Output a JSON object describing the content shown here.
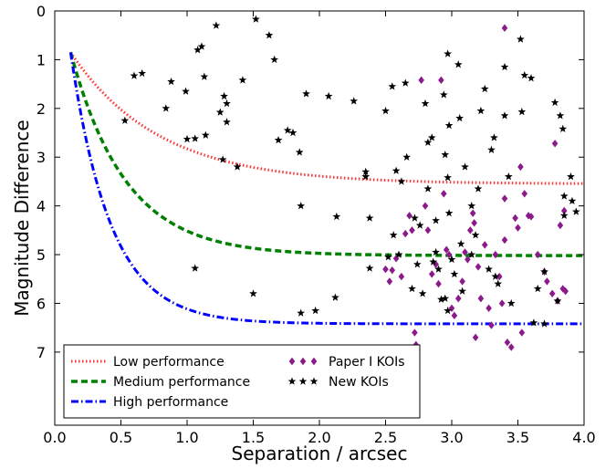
{
  "chart_data": {
    "type": "scatter",
    "xlabel": "Separation / arcsec",
    "ylabel": "Magnitude Difference",
    "xlim": [
      0.0,
      4.0
    ],
    "ylim": [
      8.5,
      0.0
    ],
    "y_inverted": true,
    "x_ticks": [
      "0.0",
      "0.5",
      "1.0",
      "1.5",
      "2.0",
      "2.5",
      "3.0",
      "3.5",
      "4.0"
    ],
    "y_ticks": [
      "0",
      "1",
      "2",
      "3",
      "4",
      "5",
      "6",
      "7"
    ],
    "grid": false,
    "legend_position": "bottom-left",
    "curves": [
      {
        "name": "Low performance",
        "color": "#ff3333",
        "style": "dotted",
        "x0": 0.12,
        "y0": 0.85,
        "y_inf": 3.55,
        "k": 1.5
      },
      {
        "name": "Medium performance",
        "color": "#008000",
        "style": "dashed",
        "x0": 0.12,
        "y0": 0.85,
        "y_inf": 5.02,
        "k": 2.4
      },
      {
        "name": "High performance",
        "color": "#0000ff",
        "style": "dashdot",
        "x0": 0.12,
        "y0": 0.85,
        "y_inf": 6.42,
        "k": 3.3
      }
    ],
    "series": [
      {
        "name": "Paper I KOIs",
        "marker": "diamond",
        "color": "#8b1a8b",
        "points": [
          [
            2.5,
            5.3
          ],
          [
            2.53,
            5.55
          ],
          [
            2.55,
            5.32
          ],
          [
            2.58,
            5.08
          ],
          [
            2.62,
            5.45
          ],
          [
            2.65,
            4.57
          ],
          [
            2.68,
            4.2
          ],
          [
            2.7,
            4.5
          ],
          [
            2.72,
            6.6
          ],
          [
            2.73,
            6.85
          ],
          [
            2.77,
            1.42
          ],
          [
            2.8,
            4.0
          ],
          [
            2.82,
            4.5
          ],
          [
            2.85,
            5.4
          ],
          [
            2.88,
            5.2
          ],
          [
            2.9,
            5.6
          ],
          [
            2.92,
            1.42
          ],
          [
            2.94,
            3.75
          ],
          [
            2.96,
            4.9
          ],
          [
            2.98,
            5.0
          ],
          [
            3.0,
            6.1
          ],
          [
            3.02,
            6.25
          ],
          [
            3.05,
            5.9
          ],
          [
            3.08,
            5.55
          ],
          [
            3.1,
            4.95
          ],
          [
            3.12,
            5.1
          ],
          [
            3.14,
            4.5
          ],
          [
            3.16,
            4.15
          ],
          [
            3.17,
            4.35
          ],
          [
            3.18,
            6.7
          ],
          [
            3.2,
            5.25
          ],
          [
            3.22,
            5.9
          ],
          [
            3.25,
            4.8
          ],
          [
            3.28,
            6.1
          ],
          [
            3.3,
            6.45
          ],
          [
            3.33,
            5.0
          ],
          [
            3.36,
            5.45
          ],
          [
            3.38,
            6.0
          ],
          [
            3.4,
            0.35
          ],
          [
            3.4,
            3.85
          ],
          [
            3.4,
            4.7
          ],
          [
            3.42,
            6.8
          ],
          [
            3.45,
            6.9
          ],
          [
            3.48,
            4.25
          ],
          [
            3.5,
            4.45
          ],
          [
            3.52,
            3.2
          ],
          [
            3.53,
            6.6
          ],
          [
            3.55,
            3.75
          ],
          [
            3.58,
            4.2
          ],
          [
            3.6,
            4.22
          ],
          [
            3.65,
            5.0
          ],
          [
            3.7,
            5.35
          ],
          [
            3.72,
            5.55
          ],
          [
            3.76,
            5.8
          ],
          [
            3.78,
            2.72
          ],
          [
            3.8,
            5.95
          ],
          [
            3.82,
            4.4
          ],
          [
            3.84,
            5.7
          ],
          [
            3.85,
            4.1
          ],
          [
            3.86,
            5.75
          ]
        ]
      },
      {
        "name": "New KOIs",
        "marker": "star",
        "color": "#000000",
        "points": [
          [
            0.53,
            2.25
          ],
          [
            0.6,
            1.33
          ],
          [
            0.66,
            1.28
          ],
          [
            0.84,
            2.0
          ],
          [
            0.88,
            1.45
          ],
          [
            0.99,
            1.65
          ],
          [
            1.0,
            2.63
          ],
          [
            1.06,
            2.62
          ],
          [
            1.06,
            5.28
          ],
          [
            1.08,
            0.8
          ],
          [
            1.11,
            0.73
          ],
          [
            1.13,
            1.35
          ],
          [
            1.14,
            2.55
          ],
          [
            1.22,
            0.3
          ],
          [
            1.25,
            2.08
          ],
          [
            1.27,
            3.05
          ],
          [
            1.28,
            1.75
          ],
          [
            1.3,
            1.9
          ],
          [
            1.3,
            2.28
          ],
          [
            1.38,
            3.2
          ],
          [
            1.42,
            1.42
          ],
          [
            1.5,
            5.8
          ],
          [
            1.52,
            0.17
          ],
          [
            1.62,
            0.5
          ],
          [
            1.66,
            1.0
          ],
          [
            1.69,
            2.65
          ],
          [
            1.76,
            2.45
          ],
          [
            1.8,
            2.5
          ],
          [
            1.85,
            2.9
          ],
          [
            1.86,
            4.0
          ],
          [
            1.86,
            6.2
          ],
          [
            1.9,
            1.7
          ],
          [
            1.97,
            6.15
          ],
          [
            2.07,
            1.75
          ],
          [
            2.12,
            5.88
          ],
          [
            2.13,
            4.22
          ],
          [
            2.26,
            1.85
          ],
          [
            2.35,
            3.3
          ],
          [
            2.35,
            3.4
          ],
          [
            2.38,
            4.25
          ],
          [
            2.38,
            5.28
          ],
          [
            2.5,
            2.05
          ],
          [
            2.52,
            5.05
          ],
          [
            2.55,
            1.55
          ],
          [
            2.56,
            4.6
          ],
          [
            2.58,
            3.28
          ],
          [
            2.6,
            5.0
          ],
          [
            2.62,
            3.5
          ],
          [
            2.65,
            1.48
          ],
          [
            2.66,
            3.0
          ],
          [
            2.7,
            5.7
          ],
          [
            2.72,
            4.25
          ],
          [
            2.74,
            5.2
          ],
          [
            2.76,
            4.4
          ],
          [
            2.78,
            5.8
          ],
          [
            2.8,
            1.9
          ],
          [
            2.82,
            2.7
          ],
          [
            2.82,
            3.65
          ],
          [
            2.85,
            2.6
          ],
          [
            2.86,
            5.15
          ],
          [
            2.88,
            4.3
          ],
          [
            2.88,
            4.95
          ],
          [
            2.9,
            5.3
          ],
          [
            2.92,
            5.92
          ],
          [
            2.94,
            1.72
          ],
          [
            2.95,
            2.95
          ],
          [
            2.95,
            5.9
          ],
          [
            2.97,
            0.88
          ],
          [
            2.97,
            3.42
          ],
          [
            2.97,
            6.15
          ],
          [
            2.98,
            2.35
          ],
          [
            2.98,
            4.15
          ],
          [
            3.0,
            5.1
          ],
          [
            3.02,
            5.4
          ],
          [
            3.05,
            1.1
          ],
          [
            3.06,
            2.2
          ],
          [
            3.07,
            4.78
          ],
          [
            3.08,
            5.75
          ],
          [
            3.1,
            3.2
          ],
          [
            3.15,
            4.0
          ],
          [
            3.15,
            5.0
          ],
          [
            3.18,
            4.6
          ],
          [
            3.2,
            3.65
          ],
          [
            3.22,
            2.05
          ],
          [
            3.25,
            1.6
          ],
          [
            3.28,
            5.3
          ],
          [
            3.3,
            2.85
          ],
          [
            3.32,
            2.6
          ],
          [
            3.33,
            5.45
          ],
          [
            3.35,
            5.6
          ],
          [
            3.4,
            1.15
          ],
          [
            3.4,
            2.15
          ],
          [
            3.43,
            3.4
          ],
          [
            3.45,
            6.0
          ],
          [
            3.52,
            0.58
          ],
          [
            3.53,
            2.07
          ],
          [
            3.55,
            1.32
          ],
          [
            3.6,
            1.38
          ],
          [
            3.62,
            6.4
          ],
          [
            3.65,
            5.7
          ],
          [
            3.7,
            5.35
          ],
          [
            3.7,
            6.42
          ],
          [
            3.78,
            1.88
          ],
          [
            3.8,
            5.95
          ],
          [
            3.82,
            2.15
          ],
          [
            3.84,
            2.42
          ],
          [
            3.85,
            3.8
          ],
          [
            3.85,
            4.2
          ],
          [
            3.9,
            3.4
          ],
          [
            3.91,
            3.9
          ],
          [
            3.94,
            4.12
          ]
        ]
      }
    ]
  }
}
